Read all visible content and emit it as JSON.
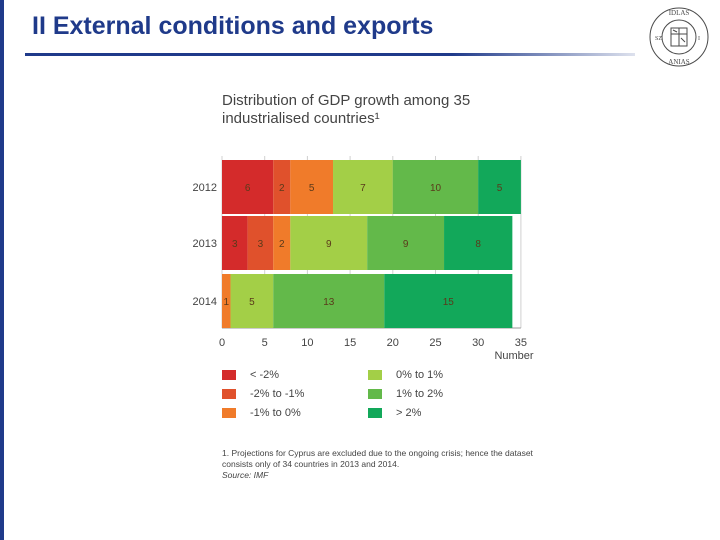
{
  "slide": {
    "title": "II External conditions and exports",
    "seal_text": "IDLAS ANIAS"
  },
  "colors": {
    "title_blue": "#1f3a8a",
    "lt_m2": "#d42b2b",
    "m2_m1": "#e0512c",
    "m1_0": "#f07b2a",
    "0_1": "#a3cf47",
    "1_2": "#63b94a",
    "gt_2": "#12a85a"
  },
  "chart_data": {
    "type": "bar",
    "orientation": "horizontal",
    "stacked": true,
    "title": "Distribution of GDP growth among 35 industrialised countries¹",
    "categories": [
      "2012",
      "2013",
      "2014"
    ],
    "series": [
      {
        "name": "< -2%",
        "color": "#d42b2b",
        "values": [
          6,
          3,
          0
        ]
      },
      {
        "name": "-2% to -1%",
        "color": "#e0512c",
        "values": [
          2,
          3,
          0
        ]
      },
      {
        "name": "-1% to 0%",
        "color": "#f07b2a",
        "values": [
          5,
          2,
          1
        ]
      },
      {
        "name": "0% to 1%",
        "color": "#a3cf47",
        "values": [
          7,
          9,
          5
        ]
      },
      {
        "name": "1% to 2%",
        "color": "#63b94a",
        "values": [
          10,
          9,
          13
        ]
      },
      {
        "name": "> 2%",
        "color": "#12a85a",
        "values": [
          5,
          8,
          15
        ]
      }
    ],
    "xlim": [
      0,
      35
    ],
    "xticks": [
      0,
      5,
      10,
      15,
      20,
      25,
      30,
      35
    ],
    "xlabel": "Number",
    "grid": "vertical",
    "legend_placement": "bottom",
    "footnote": "1. Projections for Cyprus are excluded due to the ongoing crisis; hence the dataset consists only of 34 countries in 2013 and 2014.",
    "source": "Source: IMF"
  }
}
